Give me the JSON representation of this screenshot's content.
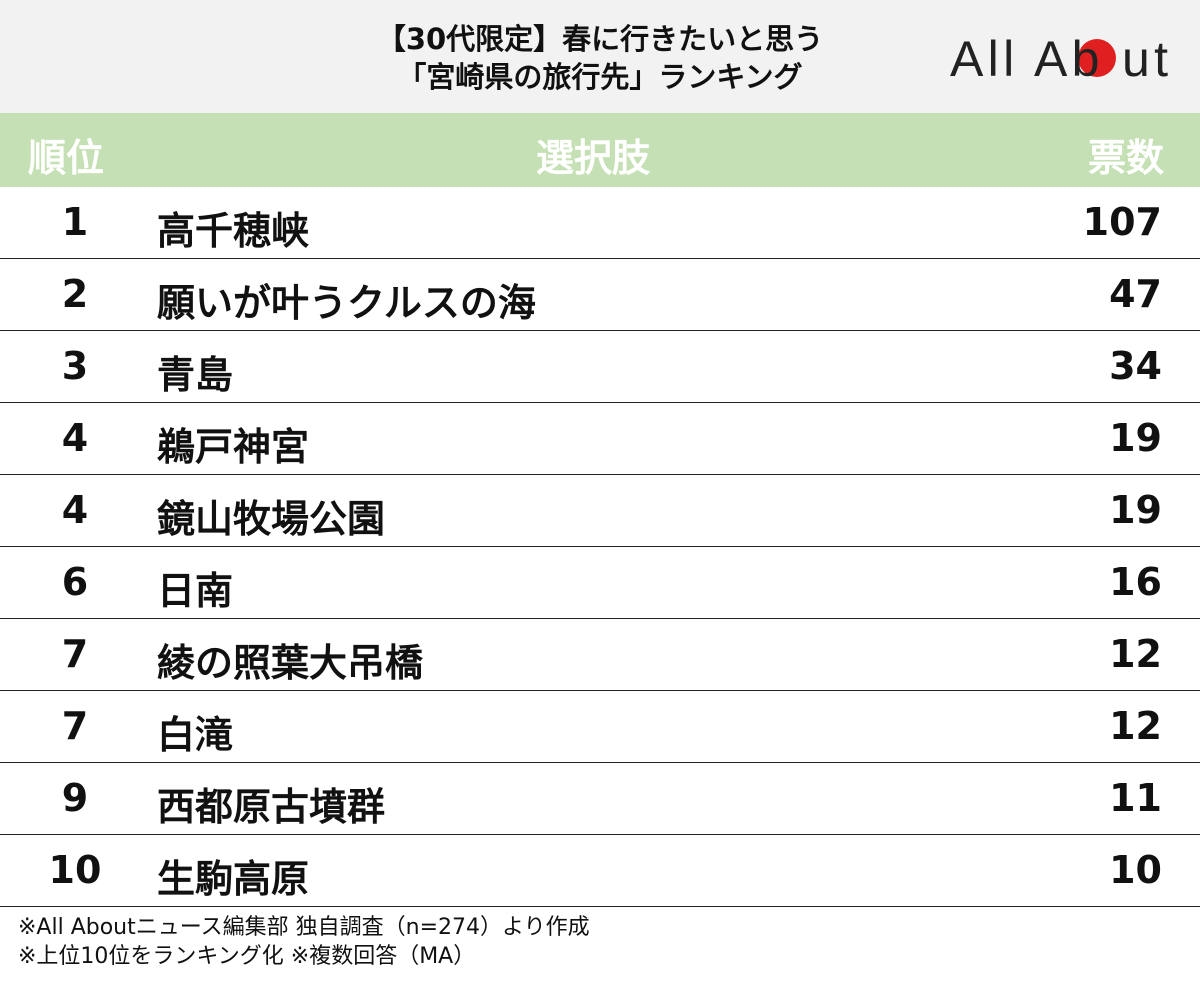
{
  "title_line1": "【30代限定】春に行きたいと思う",
  "title_line2": "「宮崎県の旅行先」ランキング",
  "logo": {
    "text": "All About",
    "dot_color": "#e02020"
  },
  "colors": {
    "header_band": "#c5e0b4",
    "title_bg": "#f2f2f2"
  },
  "chart_data": {
    "type": "table",
    "columns": [
      "順位",
      "選択肢",
      "票数"
    ],
    "rows": [
      {
        "rank": "1",
        "name": "高千穂峡",
        "votes": "107"
      },
      {
        "rank": "2",
        "name": "願いが叶うクルスの海",
        "votes": "47"
      },
      {
        "rank": "3",
        "name": "青島",
        "votes": "34"
      },
      {
        "rank": "4",
        "name": "鵜戸神宮",
        "votes": "19"
      },
      {
        "rank": "4",
        "name": "鏡山牧場公園",
        "votes": "19"
      },
      {
        "rank": "6",
        "name": "日南",
        "votes": "16"
      },
      {
        "rank": "7",
        "name": "綾の照葉大吊橋",
        "votes": "12"
      },
      {
        "rank": "7",
        "name": "白滝",
        "votes": "12"
      },
      {
        "rank": "9",
        "name": "西都原古墳群",
        "votes": "11"
      },
      {
        "rank": "10",
        "name": "生駒高原",
        "votes": "10"
      }
    ]
  },
  "footer": {
    "line1": "※All Aboutニュース編集部 独自調査（n=274）より作成",
    "line2": "※上位10位をランキング化 ※複数回答（MA）"
  }
}
